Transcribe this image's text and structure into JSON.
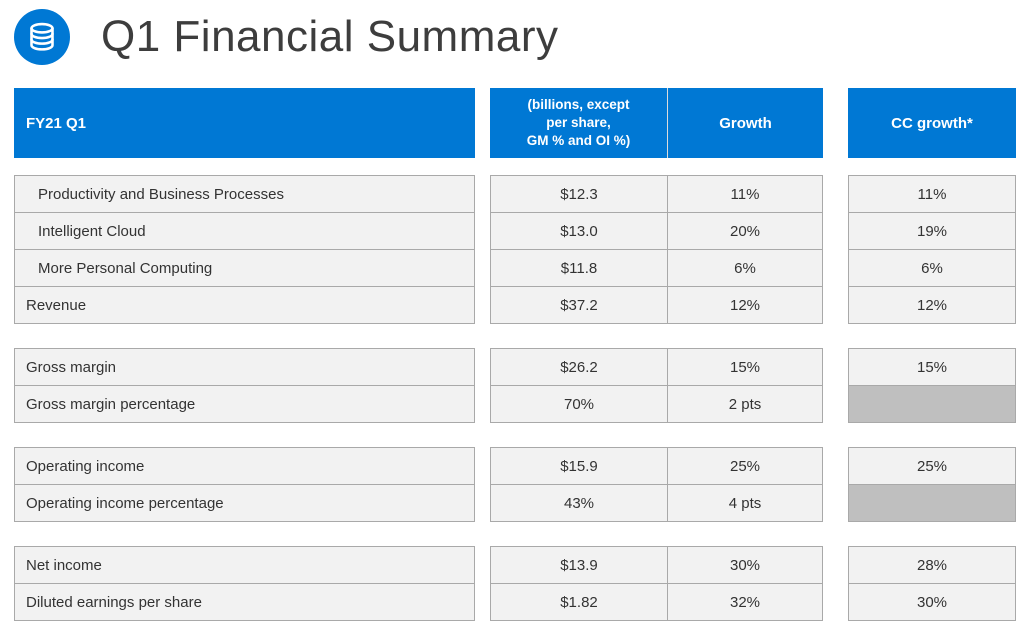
{
  "slide": {
    "title": "Q1 Financial Summary",
    "title_icon": "coin-stack-icon"
  },
  "colors": {
    "accent": "#0078D4",
    "cell_background": "#F2F2F2",
    "blank_cell_background": "#BFBFBF",
    "cell_border": "#A9A9A9",
    "header_text": "#FFFFFF",
    "title_text": "#3D3D3D"
  },
  "table": {
    "headers": {
      "fiscal_label": "FY21 Q1",
      "units": "(billions, except per share, GM % and OI %)",
      "units_lines": [
        "(billions, except",
        "per share,",
        "GM % and OI %)"
      ],
      "growth": "Growth",
      "cc_growth": "CC growth*"
    },
    "groups": [
      {
        "rows": [
          {
            "label": "Productivity and Business Processes",
            "indent": true,
            "amount": "$12.3",
            "growth": "11%",
            "cc_growth": "11%"
          },
          {
            "label": "Intelligent Cloud",
            "indent": true,
            "amount": "$13.0",
            "growth": "20%",
            "cc_growth": "19%"
          },
          {
            "label": "More Personal Computing",
            "indent": true,
            "amount": "$11.8",
            "growth": "6%",
            "cc_growth": "6%"
          },
          {
            "label": "Revenue",
            "indent": false,
            "amount": "$37.2",
            "growth": "12%",
            "cc_growth": "12%"
          }
        ]
      },
      {
        "rows": [
          {
            "label": "Gross margin",
            "indent": false,
            "amount": "$26.2",
            "growth": "15%",
            "cc_growth": "15%"
          },
          {
            "label": "Gross margin percentage",
            "indent": false,
            "amount": "70%",
            "growth": "2 pts",
            "cc_growth": null
          }
        ]
      },
      {
        "rows": [
          {
            "label": "Operating income",
            "indent": false,
            "amount": "$15.9",
            "growth": "25%",
            "cc_growth": "25%"
          },
          {
            "label": "Operating income percentage",
            "indent": false,
            "amount": "43%",
            "growth": "4 pts",
            "cc_growth": null
          }
        ]
      },
      {
        "rows": [
          {
            "label": "Net income",
            "indent": false,
            "amount": "$13.9",
            "growth": "30%",
            "cc_growth": "28%"
          },
          {
            "label": "Diluted earnings per share",
            "indent": false,
            "amount": "$1.82",
            "growth": "32%",
            "cc_growth": "30%"
          }
        ]
      }
    ]
  }
}
